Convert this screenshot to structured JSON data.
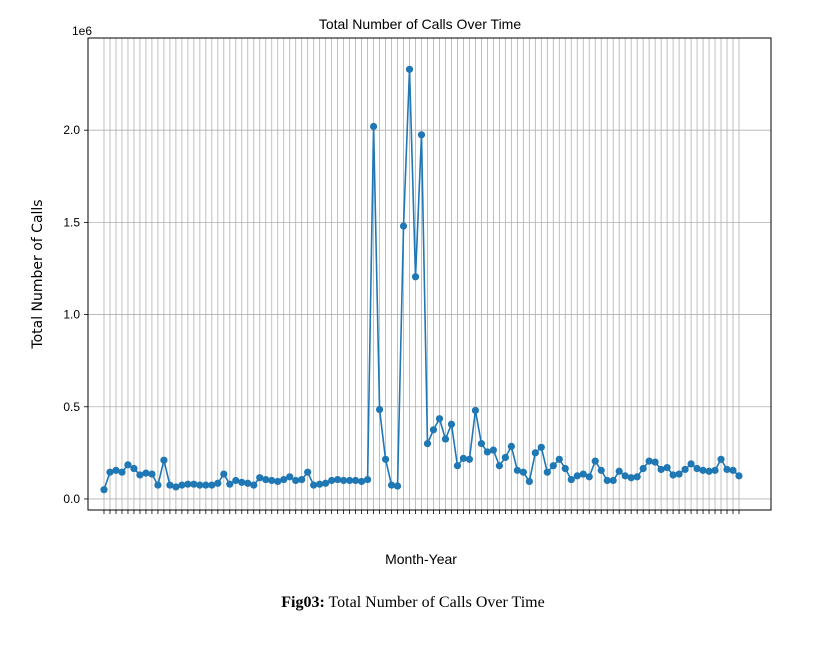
{
  "chart_data": {
    "type": "line",
    "title": "Total Number of Calls Over Time",
    "xlabel": "Month-Year",
    "ylabel": "Total Number of Calls",
    "y_offset_label": "1e6",
    "ylim": [
      -60000,
      2500000
    ],
    "y_ticks": [
      0,
      500000,
      1000000,
      1500000,
      2000000
    ],
    "y_tick_labels": [
      "0.0",
      "0.5",
      "1.0",
      "1.5",
      "2.0"
    ],
    "grid": true,
    "marker": "circle",
    "color": "#1f77b4",
    "x_tick_labels_note": "x tick labels are rotated and too small to read",
    "series": [
      {
        "values": [
          50000,
          145000,
          155000,
          145000,
          185000,
          165000,
          130000,
          140000,
          135000,
          75000,
          210000,
          75000,
          65000,
          75000,
          80000,
          80000,
          75000,
          75000,
          75000,
          85000,
          135000,
          80000,
          100000,
          90000,
          85000,
          75000,
          115000,
          105000,
          100000,
          95000,
          105000,
          120000,
          100000,
          105000,
          145000,
          75000,
          80000,
          85000,
          100000,
          105000,
          100000,
          100000,
          100000,
          95000,
          105000,
          2020000,
          485000,
          215000,
          75000,
          70000,
          1480000,
          2330000,
          1205000,
          1975000,
          300000,
          375000,
          435000,
          325000,
          405000,
          180000,
          220000,
          215000,
          480000,
          300000,
          255000,
          265000,
          180000,
          225000,
          285000,
          155000,
          145000,
          95000,
          250000,
          280000,
          145000,
          180000,
          215000,
          165000,
          105000,
          125000,
          135000,
          120000,
          205000,
          155000,
          100000,
          100000,
          150000,
          125000,
          115000,
          120000,
          165000,
          205000,
          200000,
          160000,
          170000,
          130000,
          135000,
          160000,
          190000,
          165000,
          155000,
          150000,
          155000,
          215000,
          160000,
          155000,
          125000
        ]
      }
    ]
  },
  "caption": {
    "label": "Fig03:",
    "text": " Total Number of Calls Over Time"
  }
}
